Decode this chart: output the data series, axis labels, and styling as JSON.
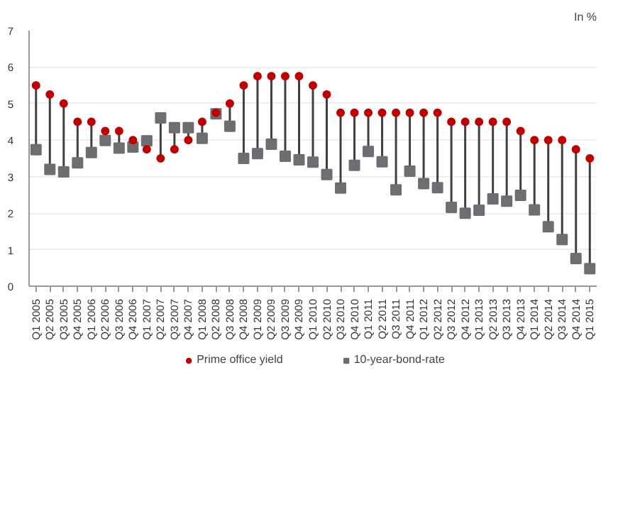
{
  "chart_data": {
    "type": "scatter",
    "ylabel": "In %",
    "categories": [
      "Q1 2005",
      "Q2 2005",
      "Q3 2005",
      "Q4 2005",
      "Q1 2006",
      "Q2 2006",
      "Q3 2006",
      "Q4 2006",
      "Q1 2007",
      "Q2 2007",
      "Q3 2007",
      "Q4 2007",
      "Q1 2008",
      "Q2 2008",
      "Q3 2008",
      "Q4 2008",
      "Q1 2009",
      "Q2 2009",
      "Q3 2009",
      "Q4 2009",
      "Q1 2010",
      "Q2 2010",
      "Q3 2010",
      "Q4 2010",
      "Q1 2011",
      "Q2 2011",
      "Q3 2011",
      "Q4 2011",
      "Q1 2012",
      "Q2 2012",
      "Q3 2012",
      "Q4 2012",
      "Q1 2013",
      "Q2 2013",
      "Q3 2013",
      "Q4 2013",
      "Q1 2014",
      "Q2 2014",
      "Q3 2014",
      "Q4 2014",
      "Q1 2015"
    ],
    "series": [
      {
        "name": "Prime office yield",
        "color": "#c00000",
        "marker": "circle",
        "values": [
          5.5,
          5.25,
          5.0,
          4.5,
          4.5,
          4.25,
          4.25,
          4.0,
          3.75,
          3.5,
          3.75,
          4.0,
          4.5,
          4.75,
          5.0,
          5.5,
          5.75,
          5.75,
          5.75,
          5.75,
          5.5,
          5.25,
          4.75,
          4.75,
          4.75,
          4.75,
          4.75,
          4.75,
          4.75,
          4.75,
          4.5,
          4.5,
          4.5,
          4.5,
          4.5,
          4.25,
          4.0,
          4.0,
          4.0,
          3.75,
          3.5
        ]
      },
      {
        "name": "10-year-bond-rate",
        "color": "#6d6e71",
        "marker": "square",
        "values": [
          3.74,
          3.2,
          3.13,
          3.38,
          3.66,
          3.99,
          3.78,
          3.81,
          3.98,
          4.61,
          4.34,
          4.34,
          4.05,
          4.72,
          4.38,
          3.5,
          3.63,
          3.89,
          3.56,
          3.46,
          3.4,
          3.06,
          2.69,
          3.31,
          3.69,
          3.41,
          2.64,
          3.15,
          2.81,
          2.7,
          2.16,
          2.0,
          2.08,
          2.39,
          2.33,
          2.49,
          2.09,
          1.63,
          1.28,
          0.76,
          0.48
        ]
      }
    ],
    "ylim": [
      0,
      7
    ],
    "yticks": [
      0,
      1,
      2,
      3,
      4,
      5,
      6,
      7
    ],
    "grid": "y",
    "legend": "bottom"
  }
}
